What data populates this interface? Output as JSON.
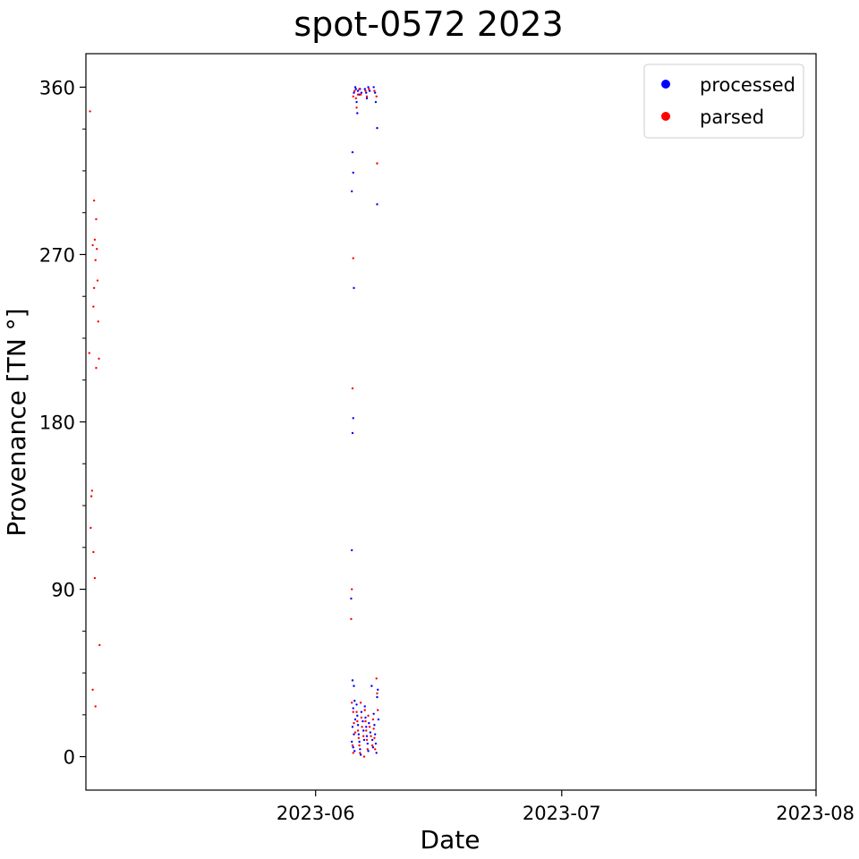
{
  "chart_data": {
    "type": "scatter",
    "title": "spot-0572 2023",
    "xlabel": "Date",
    "ylabel": "Provenance [TN °]",
    "xlim": [
      "2023-05-04",
      "2023-08-01"
    ],
    "ylim": [
      -18,
      378
    ],
    "x_ticks": [
      "2023-06-01",
      "2023-07-01",
      "2023-08-01"
    ],
    "x_tick_labels": [
      "2023-06",
      "2023-07",
      "2023-08"
    ],
    "y_ticks": [
      0,
      90,
      180,
      270,
      360
    ],
    "y_minor_step": 22.5,
    "grid": false,
    "legend_position": "top-right",
    "series": [
      {
        "name": "processed",
        "color": "#0000ff",
        "points": [
          [
            "2023-06-05 12:00",
            325
          ],
          [
            "2023-06-05 14:00",
            314
          ],
          [
            "2023-06-05 10:00",
            304
          ],
          [
            "2023-06-05 16:00",
            252
          ],
          [
            "2023-06-05 14:00",
            182
          ],
          [
            "2023-06-05 12:00",
            174
          ],
          [
            "2023-06-05 10:00",
            111
          ],
          [
            "2023-06-05 08:00",
            85
          ],
          [
            "2023-06-05 12:00",
            41
          ],
          [
            "2023-06-05 16:00",
            38
          ],
          [
            "2023-06-05 18:00",
            30
          ],
          [
            "2023-06-05 14:00",
            26
          ],
          [
            "2023-06-05 20:00",
            20
          ],
          [
            "2023-06-05 12:00",
            16
          ],
          [
            "2023-06-05 16:00",
            12
          ],
          [
            "2023-06-05 10:00",
            8
          ],
          [
            "2023-06-05 14:00",
            5
          ],
          [
            "2023-06-05 18:00",
            3
          ],
          [
            "2023-06-05 16:00",
            357
          ],
          [
            "2023-06-05 20:00",
            360
          ],
          [
            "2023-06-05 22:00",
            359
          ],
          [
            "2023-06-06 00:00",
            352
          ],
          [
            "2023-06-06 02:00",
            346
          ],
          [
            "2023-06-06 04:00",
            358
          ],
          [
            "2023-06-06 08:00",
            356
          ],
          [
            "2023-06-06 10:00",
            359
          ],
          [
            "2023-06-06 14:00",
            357
          ],
          [
            "2023-06-06 00:00",
            28
          ],
          [
            "2023-06-06 02:00",
            22
          ],
          [
            "2023-06-06 04:00",
            17
          ],
          [
            "2023-06-06 06:00",
            12
          ],
          [
            "2023-06-06 08:00",
            8
          ],
          [
            "2023-06-06 10:00",
            4
          ],
          [
            "2023-06-06 12:00",
            1
          ],
          [
            "2023-06-06 14:00",
            24
          ],
          [
            "2023-06-06 18:00",
            19
          ],
          [
            "2023-06-06 20:00",
            14
          ],
          [
            "2023-06-06 22:00",
            9
          ],
          [
            "2023-06-07 00:00",
            359
          ],
          [
            "2023-06-07 04:00",
            357
          ],
          [
            "2023-06-07 06:00",
            354
          ],
          [
            "2023-06-07 10:00",
            360
          ],
          [
            "2023-06-07 14:00",
            358
          ],
          [
            "2023-06-07 00:00",
            27
          ],
          [
            "2023-06-07 02:00",
            21
          ],
          [
            "2023-06-07 04:00",
            16
          ],
          [
            "2023-06-07 06:00",
            11
          ],
          [
            "2023-06-07 08:00",
            7
          ],
          [
            "2023-06-07 10:00",
            3
          ],
          [
            "2023-06-07 12:00",
            18
          ],
          [
            "2023-06-07 16:00",
            13
          ],
          [
            "2023-06-07 20:00",
            38
          ],
          [
            "2023-06-07 22:00",
            9
          ],
          [
            "2023-06-08 00:00",
            5
          ],
          [
            "2023-06-08 02:00",
            23
          ],
          [
            "2023-06-08 04:00",
            17
          ],
          [
            "2023-06-08 06:00",
            12
          ],
          [
            "2023-06-08 08:00",
            7
          ],
          [
            "2023-06-08 10:00",
            2
          ],
          [
            "2023-06-08 12:00",
            32
          ],
          [
            "2023-06-08 14:00",
            36
          ],
          [
            "2023-06-08 16:00",
            20
          ],
          [
            "2023-06-08 02:00",
            360
          ],
          [
            "2023-06-08 06:00",
            357
          ],
          [
            "2023-06-08 08:00",
            352
          ],
          [
            "2023-06-08 12:00",
            338
          ],
          [
            "2023-06-08 12:00",
            297
          ]
        ]
      },
      {
        "name": "parsed",
        "color": "#ff0000",
        "points": [
          [
            "2023-05-04 12:00",
            347
          ],
          [
            "2023-05-05 00:00",
            299
          ],
          [
            "2023-05-05 06:00",
            289
          ],
          [
            "2023-05-05 02:00",
            278
          ],
          [
            "2023-05-04 20:00",
            275
          ],
          [
            "2023-05-05 08:00",
            273
          ],
          [
            "2023-05-05 04:00",
            267
          ],
          [
            "2023-05-05 10:00",
            256
          ],
          [
            "2023-05-05 00:00",
            252
          ],
          [
            "2023-05-04 22:00",
            242
          ],
          [
            "2023-05-05 12:00",
            234
          ],
          [
            "2023-05-04 10:00",
            217
          ],
          [
            "2023-05-05 14:00",
            214
          ],
          [
            "2023-05-05 06:00",
            209
          ],
          [
            "2023-05-04 18:00",
            143
          ],
          [
            "2023-05-04 16:00",
            140
          ],
          [
            "2023-05-04 14:00",
            123
          ],
          [
            "2023-05-04 22:00",
            110
          ],
          [
            "2023-05-05 02:00",
            96
          ],
          [
            "2023-05-05 16:00",
            60
          ],
          [
            "2023-05-04 20:00",
            36
          ],
          [
            "2023-05-05 04:00",
            27
          ],
          [
            "2023-06-05 14:00",
            268
          ],
          [
            "2023-06-05 12:00",
            198
          ],
          [
            "2023-06-05 10:00",
            90
          ],
          [
            "2023-06-05 08:00",
            74
          ],
          [
            "2023-06-05 10:00",
            29
          ],
          [
            "2023-06-05 14:00",
            24
          ],
          [
            "2023-06-05 16:00",
            18
          ],
          [
            "2023-06-05 20:00",
            13
          ],
          [
            "2023-06-05 12:00",
            6
          ],
          [
            "2023-06-05 14:00",
            2
          ],
          [
            "2023-06-05 14:00",
            355
          ],
          [
            "2023-06-05 18:00",
            358
          ],
          [
            "2023-06-05 22:00",
            354
          ],
          [
            "2023-06-06 00:00",
            349
          ],
          [
            "2023-06-06 04:00",
            356
          ],
          [
            "2023-06-06 08:00",
            359
          ],
          [
            "2023-06-06 12:00",
            356
          ],
          [
            "2023-06-06 00:00",
            24
          ],
          [
            "2023-06-06 02:00",
            19
          ],
          [
            "2023-06-06 04:00",
            14
          ],
          [
            "2023-06-06 06:00",
            10
          ],
          [
            "2023-06-06 08:00",
            6
          ],
          [
            "2023-06-06 10:00",
            2
          ],
          [
            "2023-06-06 12:00",
            29
          ],
          [
            "2023-06-06 14:00",
            21
          ],
          [
            "2023-06-06 16:00",
            16
          ],
          [
            "2023-06-06 20:00",
            11
          ],
          [
            "2023-06-06 22:00",
            0
          ],
          [
            "2023-06-07 02:00",
            358
          ],
          [
            "2023-06-07 06:00",
            355
          ],
          [
            "2023-06-07 12:00",
            359
          ],
          [
            "2023-06-07 00:00",
            25
          ],
          [
            "2023-06-07 02:00",
            19
          ],
          [
            "2023-06-07 04:00",
            14
          ],
          [
            "2023-06-07 06:00",
            9
          ],
          [
            "2023-06-07 08:00",
            4
          ],
          [
            "2023-06-07 10:00",
            22
          ],
          [
            "2023-06-07 14:00",
            16
          ],
          [
            "2023-06-07 18:00",
            11
          ],
          [
            "2023-06-07 22:00",
            6
          ],
          [
            "2023-06-08 00:00",
            20
          ],
          [
            "2023-06-08 02:00",
            15
          ],
          [
            "2023-06-08 04:00",
            10
          ],
          [
            "2023-06-08 06:00",
            4
          ],
          [
            "2023-06-08 10:00",
            42
          ],
          [
            "2023-06-08 12:00",
            34
          ],
          [
            "2023-06-08 14:00",
            25
          ],
          [
            "2023-06-08 04:00",
            358
          ],
          [
            "2023-06-08 10:00",
            355
          ],
          [
            "2023-06-08 12:00",
            319
          ]
        ]
      }
    ]
  }
}
